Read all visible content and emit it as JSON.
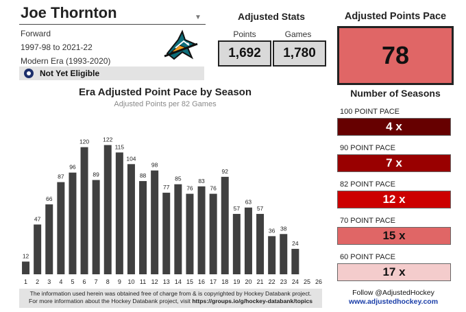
{
  "player": {
    "name": "Joe Thornton",
    "position": "Forward",
    "seasons_span": "1997-98 to 2021-22",
    "era": "Modern Era (1993-2020)",
    "hof_status": "Not Yet Eligible"
  },
  "adjusted_stats": {
    "title": "Adjusted Stats",
    "points_label": "Points",
    "points_value": "1,692",
    "games_label": "Games",
    "games_value": "1,780"
  },
  "pace": {
    "title": "Adjusted Points Pace",
    "value": "78"
  },
  "seasons": {
    "title": "Number of Seasons",
    "tiers": [
      {
        "label": "100 POINT PACE",
        "value": "4 x",
        "color": "#660000",
        "text_color": "#ffffff"
      },
      {
        "label": "90 POINT PACE",
        "value": "7 x",
        "color": "#990000",
        "text_color": "#ffffff"
      },
      {
        "label": "82 POINT PACE",
        "value": "12 x",
        "color": "#cc0000",
        "text_color": "#ffffff"
      },
      {
        "label": "70 POINT PACE",
        "value": "15 x",
        "color": "#e06666",
        "text_color": "#111111"
      },
      {
        "label": "60 POINT PACE",
        "value": "17 x",
        "color": "#f4cccc",
        "text_color": "#111111"
      }
    ]
  },
  "chart_data": {
    "type": "bar",
    "title": "Era Adjusted Point Pace by Season",
    "subtitle": "Adjusted Points per 82 Games",
    "categories": [
      "1",
      "2",
      "3",
      "4",
      "5",
      "6",
      "7",
      "8",
      "9",
      "10",
      "11",
      "12",
      "13",
      "14",
      "15",
      "16",
      "17",
      "18",
      "19",
      "20",
      "21",
      "22",
      "23",
      "24",
      "25",
      "26"
    ],
    "values": [
      12,
      47,
      66,
      87,
      96,
      120,
      89,
      122,
      115,
      104,
      88,
      98,
      77,
      85,
      76,
      83,
      76,
      92,
      57,
      63,
      57,
      36,
      38,
      24,
      null,
      null
    ],
    "ylim": [
      0,
      145
    ],
    "bar_color": "#404040"
  },
  "footer": {
    "disclaimer_line1": "The information used herein was obtained free of charge from & is copyrighted by Hockey Databank project.",
    "disclaimer_line2_prefix": "For more information about the Hockey Databank project, visit ",
    "disclaimer_link": "https://groups.io/g/hockey-databank/topics",
    "follow": "Follow @AdjustedHockey",
    "website": "www.adjustedhockey.com"
  },
  "icons": {
    "team_logo": "sharks-logo-icon",
    "hof": "hockey-hall-of-fame-icon",
    "dropdown": "dropdown-arrow-icon"
  }
}
